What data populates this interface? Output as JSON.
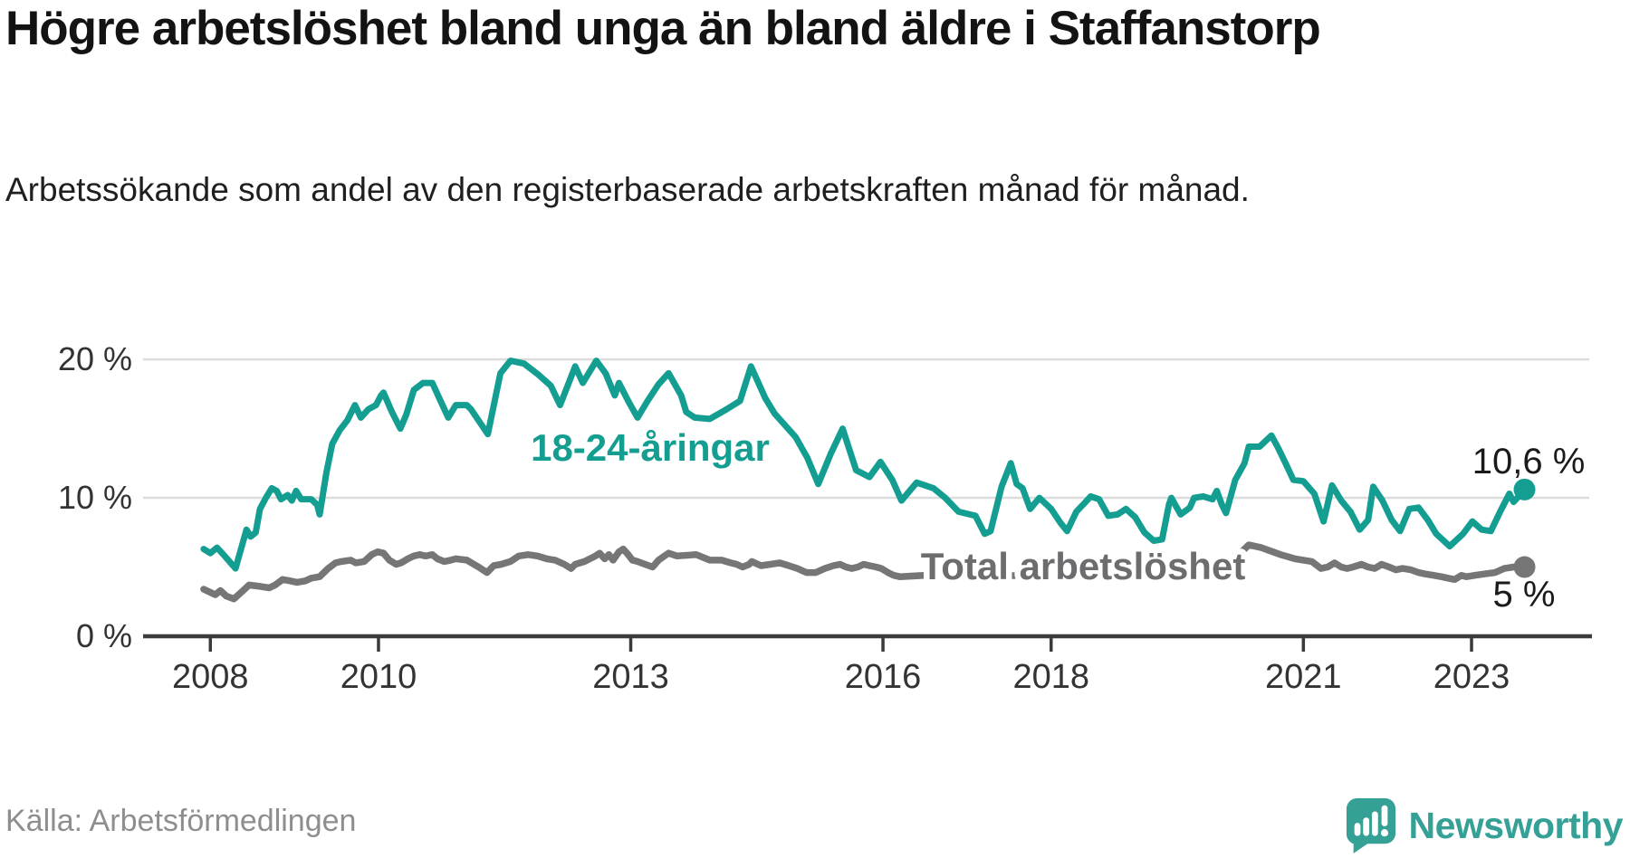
{
  "colors": {
    "youth": "#149e91",
    "youth_label": "#149e91",
    "total": "#767676",
    "total_label": "#6d6d70",
    "end_label": "#1a1a1a",
    "axis": "#3a3a3a",
    "grid": "#dcdcdc",
    "tick_text": "#333333",
    "brand": "#35a095"
  },
  "chart_data": {
    "type": "line",
    "title": "Högre arbetslöshet bland unga än bland äldre i Staffanstorp",
    "subtitle": "Arbetssökande som andel av den registerbaserade arbetskraften månad för månad.",
    "source": "Källa: Arbetsförmedlingen",
    "brand": "Newsworthy",
    "xlabel": "",
    "ylabel": "",
    "xlim": [
      2007.2,
      2024.4
    ],
    "ylim": [
      0,
      22.1
    ],
    "grid": "horizontal",
    "legend_position": "inline",
    "x_ticks": [
      {
        "value": 2008,
        "label": "2008"
      },
      {
        "value": 2010,
        "label": "2010"
      },
      {
        "value": 2013,
        "label": "2013"
      },
      {
        "value": 2016,
        "label": "2016"
      },
      {
        "value": 2018,
        "label": "2018"
      },
      {
        "value": 2021,
        "label": "2021"
      },
      {
        "value": 2023,
        "label": "2023"
      }
    ],
    "y_ticks": [
      {
        "value": 0,
        "label": "0 %"
      },
      {
        "value": 10,
        "label": "10 %"
      },
      {
        "value": 20,
        "label": "20 %"
      }
    ],
    "series": [
      {
        "name": "18-24-åringar",
        "end_label": "10,6 %",
        "end_value": 10.6,
        "points": [
          [
            2007.92,
            6.3
          ],
          [
            2008.0,
            6.0
          ],
          [
            2008.08,
            6.4
          ],
          [
            2008.17,
            5.8
          ],
          [
            2008.3,
            4.9
          ],
          [
            2008.43,
            7.7
          ],
          [
            2008.48,
            7.2
          ],
          [
            2008.54,
            7.5
          ],
          [
            2008.59,
            9.2
          ],
          [
            2008.66,
            10.0
          ],
          [
            2008.73,
            10.7
          ],
          [
            2008.79,
            10.5
          ],
          [
            2008.84,
            9.9
          ],
          [
            2008.92,
            10.2
          ],
          [
            2008.97,
            9.8
          ],
          [
            2009.02,
            10.5
          ],
          [
            2009.08,
            9.9
          ],
          [
            2009.2,
            9.9
          ],
          [
            2009.27,
            9.5
          ],
          [
            2009.3,
            8.8
          ],
          [
            2009.38,
            11.8
          ],
          [
            2009.45,
            13.9
          ],
          [
            2009.54,
            14.9
          ],
          [
            2009.63,
            15.6
          ],
          [
            2009.72,
            16.7
          ],
          [
            2009.79,
            15.8
          ],
          [
            2009.88,
            16.4
          ],
          [
            2009.97,
            16.7
          ],
          [
            2010.03,
            17.4
          ],
          [
            2010.06,
            17.6
          ],
          [
            2010.16,
            16.2
          ],
          [
            2010.26,
            15.0
          ],
          [
            2010.33,
            16.0
          ],
          [
            2010.42,
            17.8
          ],
          [
            2010.53,
            18.3
          ],
          [
            2010.64,
            18.3
          ],
          [
            2010.73,
            17.1
          ],
          [
            2010.83,
            15.8
          ],
          [
            2010.92,
            16.7
          ],
          [
            2011.05,
            16.7
          ],
          [
            2011.1,
            16.4
          ],
          [
            2011.3,
            14.6
          ],
          [
            2011.45,
            19.0
          ],
          [
            2011.57,
            19.9
          ],
          [
            2011.73,
            19.7
          ],
          [
            2011.9,
            18.9
          ],
          [
            2012.05,
            18.1
          ],
          [
            2012.16,
            16.7
          ],
          [
            2012.34,
            19.5
          ],
          [
            2012.43,
            18.3
          ],
          [
            2012.59,
            19.9
          ],
          [
            2012.7,
            19.0
          ],
          [
            2012.81,
            17.4
          ],
          [
            2012.86,
            18.3
          ],
          [
            2012.97,
            17.0
          ],
          [
            2013.08,
            15.8
          ],
          [
            2013.2,
            17.0
          ],
          [
            2013.33,
            18.2
          ],
          [
            2013.45,
            19.0
          ],
          [
            2013.6,
            17.4
          ],
          [
            2013.66,
            16.2
          ],
          [
            2013.76,
            15.8
          ],
          [
            2013.94,
            15.7
          ],
          [
            2014.14,
            16.4
          ],
          [
            2014.3,
            17.0
          ],
          [
            2014.43,
            19.5
          ],
          [
            2014.6,
            17.2
          ],
          [
            2014.71,
            16.1
          ],
          [
            2014.96,
            14.4
          ],
          [
            2015.1,
            12.9
          ],
          [
            2015.23,
            11.0
          ],
          [
            2015.38,
            13.2
          ],
          [
            2015.52,
            15.0
          ],
          [
            2015.68,
            12.0
          ],
          [
            2015.84,
            11.5
          ],
          [
            2015.97,
            12.6
          ],
          [
            2016.11,
            11.3
          ],
          [
            2016.22,
            9.8
          ],
          [
            2016.4,
            11.1
          ],
          [
            2016.6,
            10.7
          ],
          [
            2016.74,
            10.0
          ],
          [
            2016.9,
            9.0
          ],
          [
            2017.1,
            8.7
          ],
          [
            2017.21,
            7.4
          ],
          [
            2017.28,
            7.6
          ],
          [
            2017.41,
            10.8
          ],
          [
            2017.52,
            12.5
          ],
          [
            2017.59,
            11.0
          ],
          [
            2017.66,
            10.7
          ],
          [
            2017.75,
            9.2
          ],
          [
            2017.86,
            10.0
          ],
          [
            2018.0,
            9.2
          ],
          [
            2018.11,
            8.2
          ],
          [
            2018.19,
            7.6
          ],
          [
            2018.3,
            9.0
          ],
          [
            2018.41,
            9.7
          ],
          [
            2018.47,
            10.1
          ],
          [
            2018.57,
            9.9
          ],
          [
            2018.68,
            8.7
          ],
          [
            2018.79,
            8.8
          ],
          [
            2018.89,
            9.2
          ],
          [
            2019.0,
            8.6
          ],
          [
            2019.11,
            7.5
          ],
          [
            2019.22,
            6.9
          ],
          [
            2019.32,
            7.0
          ],
          [
            2019.4,
            9.5
          ],
          [
            2019.43,
            10.0
          ],
          [
            2019.54,
            8.8
          ],
          [
            2019.65,
            9.3
          ],
          [
            2019.7,
            10.0
          ],
          [
            2019.81,
            10.1
          ],
          [
            2019.92,
            9.9
          ],
          [
            2019.97,
            10.5
          ],
          [
            2020.03,
            9.5
          ],
          [
            2020.08,
            8.9
          ],
          [
            2020.19,
            11.3
          ],
          [
            2020.3,
            12.5
          ],
          [
            2020.35,
            13.7
          ],
          [
            2020.48,
            13.7
          ],
          [
            2020.62,
            14.5
          ],
          [
            2020.7,
            13.6
          ],
          [
            2020.78,
            12.6
          ],
          [
            2020.88,
            11.3
          ],
          [
            2021.0,
            11.2
          ],
          [
            2021.13,
            10.3
          ],
          [
            2021.24,
            8.3
          ],
          [
            2021.34,
            10.9
          ],
          [
            2021.45,
            9.8
          ],
          [
            2021.56,
            9.0
          ],
          [
            2021.67,
            7.7
          ],
          [
            2021.77,
            8.4
          ],
          [
            2021.83,
            10.8
          ],
          [
            2021.94,
            9.8
          ],
          [
            2022.05,
            8.4
          ],
          [
            2022.15,
            7.6
          ],
          [
            2022.26,
            9.2
          ],
          [
            2022.37,
            9.3
          ],
          [
            2022.48,
            8.4
          ],
          [
            2022.58,
            7.4
          ],
          [
            2022.74,
            6.5
          ],
          [
            2022.9,
            7.4
          ],
          [
            2023.01,
            8.3
          ],
          [
            2023.12,
            7.7
          ],
          [
            2023.23,
            7.6
          ],
          [
            2023.34,
            9.0
          ],
          [
            2023.45,
            10.3
          ],
          [
            2023.5,
            9.7
          ],
          [
            2023.56,
            10.1
          ],
          [
            2023.63,
            10.6
          ]
        ]
      },
      {
        "name": "Total arbetslöshet",
        "end_label": "5 %",
        "end_value": 5.0,
        "points": [
          [
            2007.92,
            3.4
          ],
          [
            2008.06,
            3.0
          ],
          [
            2008.12,
            3.3
          ],
          [
            2008.19,
            2.9
          ],
          [
            2008.28,
            2.7
          ],
          [
            2008.39,
            3.3
          ],
          [
            2008.46,
            3.7
          ],
          [
            2008.59,
            3.6
          ],
          [
            2008.7,
            3.5
          ],
          [
            2008.77,
            3.7
          ],
          [
            2008.86,
            4.1
          ],
          [
            2008.95,
            4.0
          ],
          [
            2009.03,
            3.9
          ],
          [
            2009.13,
            4.0
          ],
          [
            2009.2,
            4.2
          ],
          [
            2009.3,
            4.3
          ],
          [
            2009.4,
            4.9
          ],
          [
            2009.49,
            5.3
          ],
          [
            2009.56,
            5.4
          ],
          [
            2009.67,
            5.5
          ],
          [
            2009.73,
            5.3
          ],
          [
            2009.83,
            5.4
          ],
          [
            2009.92,
            5.9
          ],
          [
            2009.99,
            6.1
          ],
          [
            2010.06,
            6.0
          ],
          [
            2010.13,
            5.5
          ],
          [
            2010.21,
            5.2
          ],
          [
            2010.27,
            5.3
          ],
          [
            2010.35,
            5.6
          ],
          [
            2010.42,
            5.8
          ],
          [
            2010.49,
            5.9
          ],
          [
            2010.56,
            5.8
          ],
          [
            2010.64,
            5.9
          ],
          [
            2010.7,
            5.6
          ],
          [
            2010.78,
            5.4
          ],
          [
            2010.86,
            5.5
          ],
          [
            2010.92,
            5.6
          ],
          [
            2011.05,
            5.5
          ],
          [
            2011.19,
            5.0
          ],
          [
            2011.29,
            4.6
          ],
          [
            2011.37,
            5.1
          ],
          [
            2011.46,
            5.2
          ],
          [
            2011.57,
            5.4
          ],
          [
            2011.67,
            5.8
          ],
          [
            2011.78,
            5.9
          ],
          [
            2011.89,
            5.8
          ],
          [
            2012.0,
            5.6
          ],
          [
            2012.1,
            5.5
          ],
          [
            2012.21,
            5.2
          ],
          [
            2012.29,
            4.9
          ],
          [
            2012.34,
            5.2
          ],
          [
            2012.45,
            5.4
          ],
          [
            2012.58,
            5.8
          ],
          [
            2012.63,
            6.0
          ],
          [
            2012.69,
            5.6
          ],
          [
            2012.74,
            5.9
          ],
          [
            2012.79,
            5.5
          ],
          [
            2012.86,
            6.1
          ],
          [
            2012.91,
            6.3
          ],
          [
            2012.97,
            5.9
          ],
          [
            2013.02,
            5.5
          ],
          [
            2013.08,
            5.4
          ],
          [
            2013.17,
            5.2
          ],
          [
            2013.26,
            5.0
          ],
          [
            2013.33,
            5.5
          ],
          [
            2013.4,
            5.8
          ],
          [
            2013.45,
            6.0
          ],
          [
            2013.55,
            5.8
          ],
          [
            2013.78,
            5.9
          ],
          [
            2013.94,
            5.5
          ],
          [
            2014.08,
            5.5
          ],
          [
            2014.19,
            5.3
          ],
          [
            2014.26,
            5.2
          ],
          [
            2014.33,
            5.0
          ],
          [
            2014.41,
            5.2
          ],
          [
            2014.44,
            5.4
          ],
          [
            2014.55,
            5.1
          ],
          [
            2014.66,
            5.2
          ],
          [
            2014.77,
            5.3
          ],
          [
            2014.88,
            5.1
          ],
          [
            2014.98,
            4.9
          ],
          [
            2015.09,
            4.6
          ],
          [
            2015.2,
            4.6
          ],
          [
            2015.31,
            4.9
          ],
          [
            2015.41,
            5.1
          ],
          [
            2015.49,
            5.2
          ],
          [
            2015.56,
            5.0
          ],
          [
            2015.63,
            4.9
          ],
          [
            2015.7,
            5.0
          ],
          [
            2015.77,
            5.2
          ],
          [
            2015.84,
            5.1
          ],
          [
            2015.92,
            5.0
          ],
          [
            2015.98,
            4.9
          ],
          [
            2016.06,
            4.6
          ],
          [
            2016.13,
            4.4
          ],
          [
            2016.2,
            4.3
          ],
          [
            2016.5,
            4.4
          ],
          [
            2016.8,
            4.5
          ],
          [
            2017.0,
            4.4
          ],
          [
            2017.3,
            4.3
          ],
          [
            2017.6,
            4.4
          ],
          [
            2017.9,
            4.3
          ],
          [
            2018.2,
            4.2
          ],
          [
            2018.5,
            4.3
          ],
          [
            2018.8,
            4.2
          ],
          [
            2019.0,
            4.3
          ],
          [
            2019.3,
            4.2
          ],
          [
            2019.6,
            4.4
          ],
          [
            2019.9,
            4.5
          ],
          [
            2020.1,
            5.0
          ],
          [
            2020.25,
            6.0
          ],
          [
            2020.35,
            6.6
          ],
          [
            2020.5,
            6.4
          ],
          [
            2020.73,
            5.9
          ],
          [
            2020.9,
            5.6
          ],
          [
            2021.1,
            5.4
          ],
          [
            2021.21,
            4.9
          ],
          [
            2021.29,
            5.0
          ],
          [
            2021.37,
            5.3
          ],
          [
            2021.45,
            5.0
          ],
          [
            2021.52,
            4.9
          ],
          [
            2021.59,
            5.0
          ],
          [
            2021.69,
            5.2
          ],
          [
            2021.77,
            5.0
          ],
          [
            2021.85,
            4.9
          ],
          [
            2021.93,
            5.2
          ],
          [
            2022.02,
            5.0
          ],
          [
            2022.1,
            4.8
          ],
          [
            2022.18,
            4.9
          ],
          [
            2022.28,
            4.8
          ],
          [
            2022.37,
            4.6
          ],
          [
            2022.45,
            4.5
          ],
          [
            2022.55,
            4.4
          ],
          [
            2022.64,
            4.3
          ],
          [
            2022.72,
            4.2
          ],
          [
            2022.8,
            4.1
          ],
          [
            2022.88,
            4.4
          ],
          [
            2022.94,
            4.3
          ],
          [
            2023.04,
            4.4
          ],
          [
            2023.15,
            4.5
          ],
          [
            2023.28,
            4.6
          ],
          [
            2023.39,
            4.9
          ],
          [
            2023.5,
            5.0
          ],
          [
            2023.63,
            5.0
          ]
        ]
      }
    ]
  }
}
